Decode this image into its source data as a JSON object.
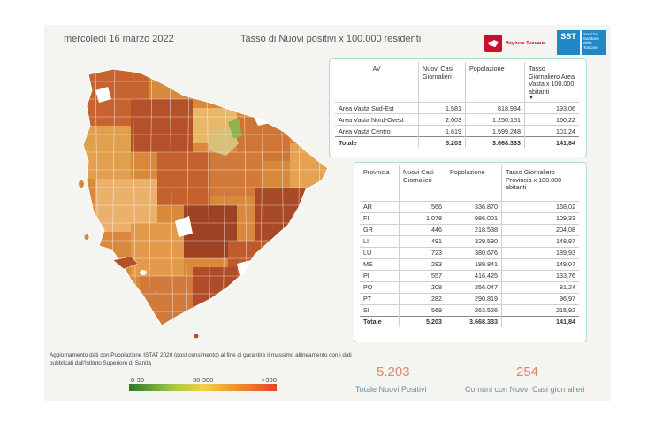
{
  "header": {
    "date": "mercoledì 16 marzo 2022",
    "title": "Tasso di Nuovi positivi x 100.000 residenti",
    "logo_regione": "Regione Toscana",
    "logo_sst_short": "SST",
    "logo_sst_text": "Servizio Sanitario della Toscana"
  },
  "colors": {
    "low": "#2a7a2a",
    "mid": "#f2d04a",
    "high": "#e8432a",
    "accent": "#e0856a"
  },
  "av_table": {
    "headers": [
      "AV",
      "Nuovi Casi Giornalieri",
      "Popolazione",
      "Tasso Giornaliero Area Vasta x 100.000 abitanti"
    ],
    "sort_indicator": "▼",
    "rows": [
      [
        "Area Vasta Sud-Est",
        "1.581",
        "818.934",
        "193,06"
      ],
      [
        "Area Vasta Nord-Ovest",
        "2.003",
        "1.250.151",
        "160,22"
      ],
      [
        "Area Vasta Centro",
        "1.619",
        "1.599.248",
        "101,24"
      ]
    ],
    "total": [
      "Totale",
      "5.203",
      "3.668.333",
      "141,84"
    ]
  },
  "prov_table": {
    "headers": [
      "Provincia",
      "Nuovi Casi Giornalieri",
      "Popolazione",
      "Tasso Giornaliero Provincia x 100.000 abitanti"
    ],
    "rows": [
      [
        "AR",
        "566",
        "336.870",
        "168,02"
      ],
      [
        "FI",
        "1.078",
        "986.001",
        "109,33"
      ],
      [
        "GR",
        "446",
        "218.538",
        "204,08"
      ],
      [
        "LI",
        "491",
        "329.590",
        "148,97"
      ],
      [
        "LU",
        "723",
        "380.676",
        "189,93"
      ],
      [
        "MS",
        "283",
        "189.841",
        "149,07"
      ],
      [
        "PI",
        "557",
        "416.425",
        "133,76"
      ],
      [
        "PO",
        "208",
        "256.047",
        "81,24"
      ],
      [
        "PT",
        "282",
        "290.819",
        "96,97"
      ],
      [
        "SI",
        "569",
        "263.526",
        "215,92"
      ]
    ],
    "total": [
      "Totale",
      "5.203",
      "3.668.333",
      "141,84"
    ]
  },
  "footnote": "Aggiornamento dati con Popolazione ISTAT 2020 (post censimento) al fine di garantire il massimo allineamento con i dati pubblicati dall'Istituto Superiore di Sanità",
  "legend": {
    "low": "0-30",
    "mid": "30-300",
    "high": ">300"
  },
  "kpi": {
    "total_value": "5.203",
    "total_label": "Totale Nuovi Positivi",
    "comuni_value": "254",
    "comuni_label": "Comuni con Nuovi Casi giornalieri"
  }
}
